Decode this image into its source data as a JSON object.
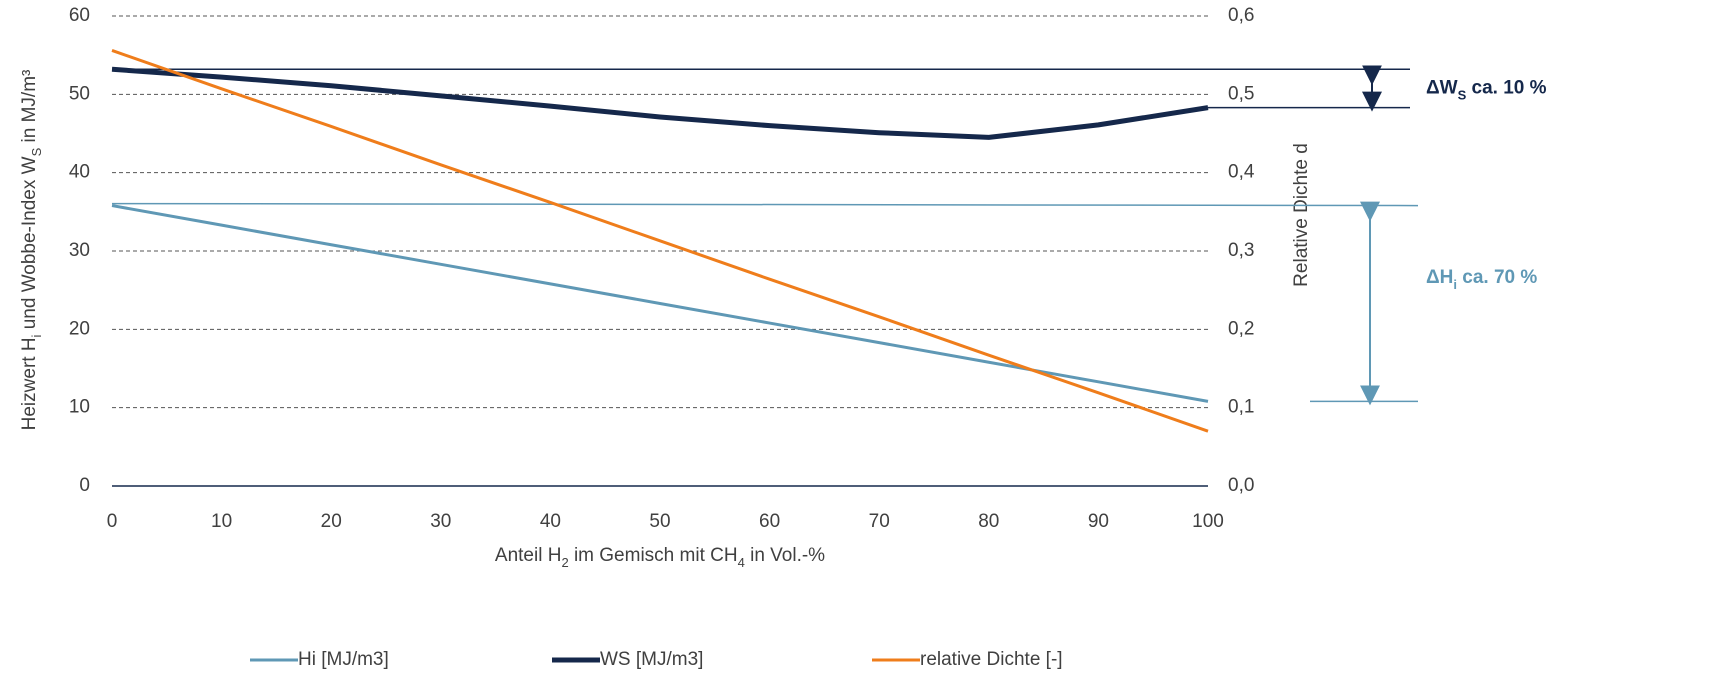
{
  "chart_data": {
    "type": "line",
    "x": [
      0,
      10,
      20,
      30,
      40,
      50,
      60,
      70,
      80,
      90,
      100
    ],
    "xlim": [
      0,
      100
    ],
    "xticks": [
      0,
      10,
      20,
      30,
      40,
      50,
      60,
      70,
      80,
      90,
      100
    ],
    "ylim": [
      0,
      60
    ],
    "yticks": [
      0,
      10,
      20,
      30,
      40,
      50,
      60
    ],
    "y2lim": [
      0,
      0.6
    ],
    "y2ticks": [
      {
        "value": 0,
        "label": "0,0"
      },
      {
        "value": 0.1,
        "label": "0,1"
      },
      {
        "value": 0.2,
        "label": "0,2"
      },
      {
        "value": 0.3,
        "label": "0,3"
      },
      {
        "value": 0.4,
        "label": "0,4"
      },
      {
        "value": 0.5,
        "label": "0,5"
      },
      {
        "value": 0.6,
        "label": "0,6"
      }
    ],
    "xlabel": [
      "Anteil H",
      "2",
      " im Gemisch mit CH",
      "4",
      " in Vol.-%"
    ],
    "ylabel": [
      "Heizwert H",
      "i",
      " und Wobbe-Index  W",
      "S",
      " in MJ/m³"
    ],
    "y2label": "Relative Dichte d",
    "grid": true,
    "legend": "bottom",
    "series": [
      {
        "name": "Hi [MJ/m3]",
        "color": "#5f98b5",
        "values": [
          35.8,
          33.3,
          30.8,
          28.3,
          25.8,
          23.3,
          20.8,
          18.3,
          15.8,
          13.3,
          10.8
        ]
      },
      {
        "name": "WS [MJ/m3]",
        "color": "#15284b",
        "values": [
          53.2,
          52.2,
          51.1,
          49.8,
          48.5,
          47.1,
          46.0,
          45.1,
          44.5,
          46.1,
          48.3
        ]
      },
      {
        "name": "relative Dichte [-]",
        "color": "#ef7d1b",
        "axis": "y2",
        "values": [
          0.556,
          0.507,
          0.459,
          0.41,
          0.362,
          0.313,
          0.264,
          0.216,
          0.167,
          0.119,
          0.07
        ]
      }
    ],
    "annotations": [
      {
        "text": [
          "ΔW",
          "S",
          " ca. 10 %"
        ],
        "color": "#15284b"
      },
      {
        "text": [
          "ΔH",
          "i",
          " ca. 70 %"
        ],
        "color": "#5f98b5"
      }
    ]
  }
}
